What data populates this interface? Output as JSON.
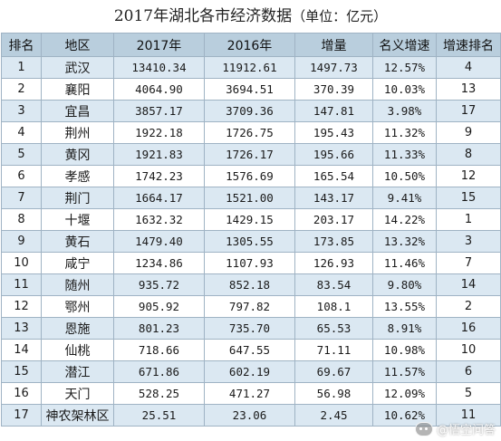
{
  "title": {
    "main": "2017年湖北各市经济数据",
    "unit": "（单位：亿元）"
  },
  "headers": [
    "排名",
    "地区",
    "2017年",
    "2016年",
    "增量",
    "名义增速",
    "增速排名"
  ],
  "rows": [
    [
      "1",
      "武汉",
      "13410.34",
      "11912.61",
      "1497.73",
      "12.57%",
      "4"
    ],
    [
      "2",
      "襄阳",
      "4064.90",
      "3694.51",
      "370.39",
      "10.03%",
      "13"
    ],
    [
      "3",
      "宜昌",
      "3857.17",
      "3709.36",
      "147.81",
      "3.98%",
      "17"
    ],
    [
      "4",
      "荆州",
      "1922.18",
      "1726.75",
      "195.43",
      "11.32%",
      "9"
    ],
    [
      "5",
      "黄冈",
      "1921.83",
      "1726.17",
      "195.66",
      "11.33%",
      "8"
    ],
    [
      "6",
      "孝感",
      "1742.23",
      "1576.69",
      "165.54",
      "10.50%",
      "12"
    ],
    [
      "7",
      "荆门",
      "1664.17",
      "1521.00",
      "143.17",
      "9.41%",
      "15"
    ],
    [
      "8",
      "十堰",
      "1632.32",
      "1429.15",
      "203.17",
      "14.22%",
      "1"
    ],
    [
      "9",
      "黄石",
      "1479.40",
      "1305.55",
      "173.85",
      "13.32%",
      "3"
    ],
    [
      "10",
      "咸宁",
      "1234.86",
      "1107.93",
      "126.93",
      "11.46%",
      "7"
    ],
    [
      "11",
      "随州",
      "935.72",
      "852.18",
      "83.54",
      "9.80%",
      "14"
    ],
    [
      "12",
      "鄂州",
      "905.92",
      "797.82",
      "108.1",
      "13.55%",
      "2"
    ],
    [
      "13",
      "恩施",
      "801.23",
      "735.70",
      "65.53",
      "8.91%",
      "16"
    ],
    [
      "14",
      "仙桃",
      "718.66",
      "647.55",
      "71.11",
      "10.98%",
      "10"
    ],
    [
      "15",
      "潜江",
      "671.86",
      "602.19",
      "69.67",
      "11.57%",
      "6"
    ],
    [
      "16",
      "天门",
      "528.25",
      "471.27",
      "56.98",
      "12.09%",
      "5"
    ],
    [
      "17",
      "神农架林区",
      "25.51",
      "23.06",
      "2.45",
      "10.62%",
      "11"
    ]
  ],
  "watermark": {
    "text": "@悟空问答",
    "icon": "chat-bubble-icon"
  }
}
